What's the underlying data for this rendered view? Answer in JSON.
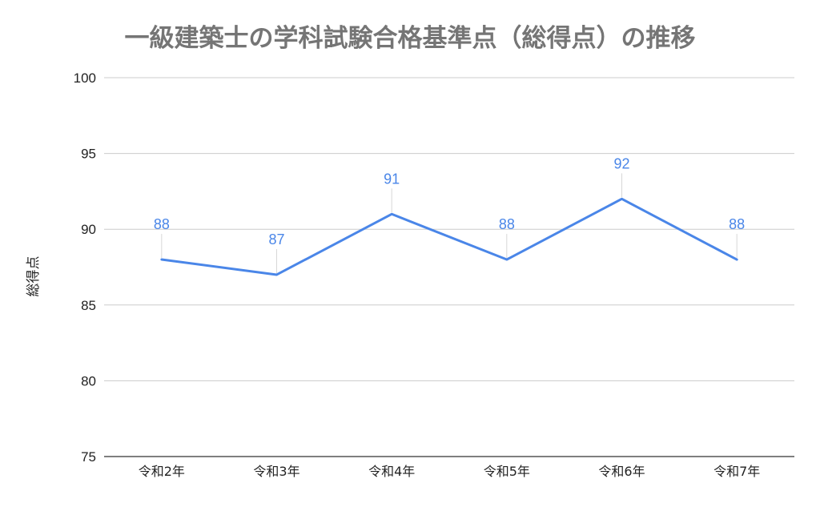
{
  "chart_data": {
    "type": "line",
    "title": "一級建築士の学科試験合格基準点（総得点）の推移",
    "xlabel": "",
    "ylabel": "総得点",
    "categories": [
      "令和2年",
      "令和3年",
      "令和4年",
      "令和5年",
      "令和6年",
      "令和7年"
    ],
    "series": [
      {
        "values": [
          88,
          87,
          91,
          88,
          92,
          88
        ],
        "color": "#4a86e8"
      }
    ],
    "ylim": [
      75,
      100
    ],
    "yticks": [
      "75",
      "80",
      "85",
      "90",
      "95",
      "100"
    ],
    "grid": true,
    "data_labels": true,
    "legend": "none"
  }
}
